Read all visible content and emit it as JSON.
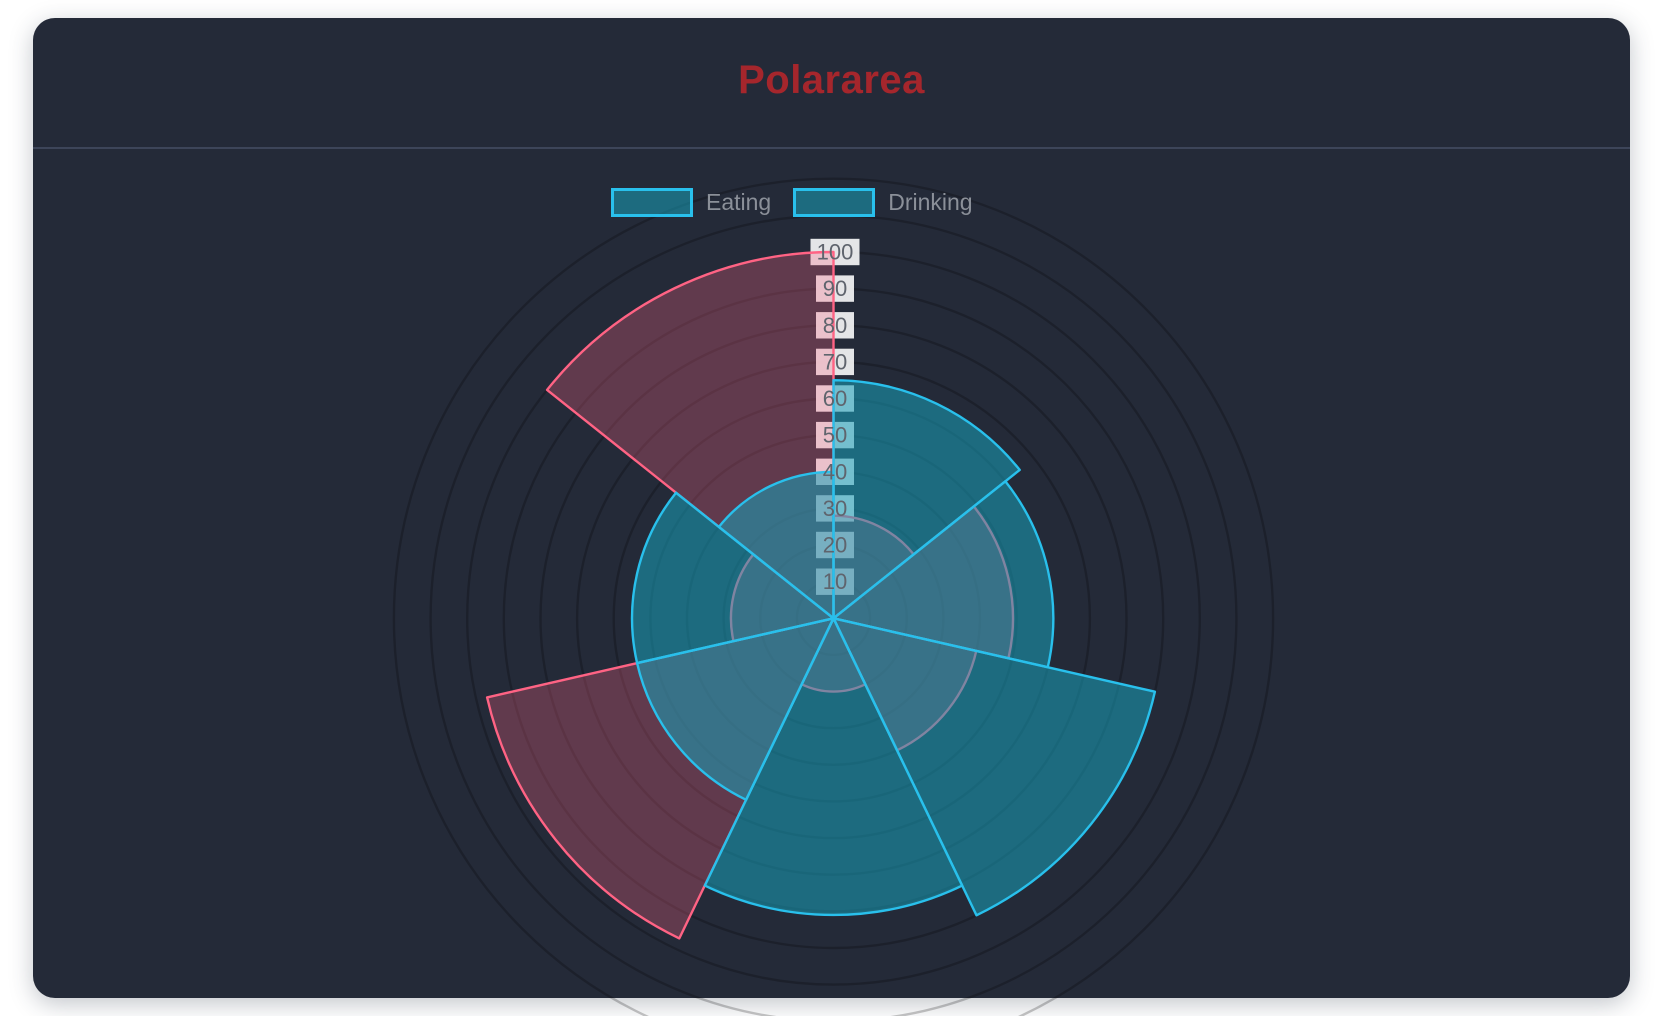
{
  "header": {
    "title": "Polararea"
  },
  "legend": {
    "items": [
      {
        "label": "Eating"
      },
      {
        "label": "Drinking"
      }
    ]
  },
  "theme": {
    "page_bg": "#ffffff",
    "card_bg": "#242a38",
    "divider": "#3d4559",
    "title_color": "#a5262c",
    "legend_text": "#8b9099",
    "tick_text": "#5f646d",
    "tick_backdrop": "rgba(255,255,255,0.88)",
    "grid_ring": "rgba(0,0,0,0.22)",
    "eating_border": "#ff6384",
    "eating_fill": "rgba(255,99,132,0.28)",
    "drinking_border": "#29c0ec",
    "drinking_fill": "rgba(24,160,186,0.55)"
  },
  "chart_data": {
    "type": "polar_area",
    "title": "Polararea",
    "legend_position": "top",
    "sector_count": 7,
    "start_angle_deg": 0,
    "clockwise": true,
    "rmax": 100,
    "tick_values": [
      10,
      20,
      30,
      40,
      50,
      60,
      70,
      80,
      90,
      100
    ],
    "grid_ring_values": [
      10,
      20,
      30,
      40,
      50,
      60,
      70,
      80,
      90,
      100,
      110,
      120
    ],
    "grid_on": true,
    "series": [
      {
        "name": "Eating",
        "border": "#ff6384",
        "fill": "rgba(255,99,132,0.28)",
        "values": [
          28,
          49,
          40,
          20,
          97,
          28,
          100
        ]
      },
      {
        "name": "Drinking",
        "border": "#29c0ec",
        "fill": "rgba(24,160,186,0.55)",
        "values": [
          65,
          60,
          90,
          81,
          55,
          55,
          40
        ]
      }
    ]
  }
}
